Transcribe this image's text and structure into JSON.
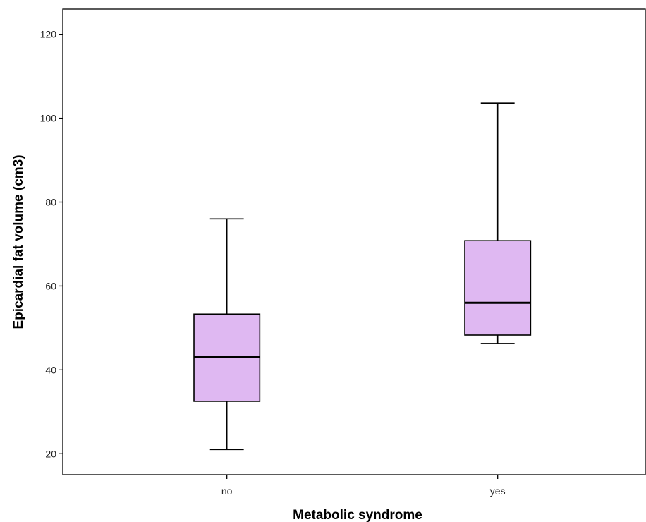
{
  "chart_data": {
    "type": "boxplot",
    "title": "",
    "xlabel": "Metabolic syndrome",
    "ylabel": "Epicardial fat volume (cm3)",
    "ylim": [
      15,
      126
    ],
    "yticks": [
      20,
      40,
      60,
      80,
      100,
      120
    ],
    "categories": [
      "no",
      "yes"
    ],
    "boxes": [
      {
        "category": "no",
        "min": 21.0,
        "q1": 32.5,
        "median": 43.0,
        "q3": 53.3,
        "max": 76.0
      },
      {
        "category": "yes",
        "min": 46.3,
        "q1": 48.3,
        "median": 56.0,
        "q3": 70.8,
        "max": 103.6
      }
    ],
    "grid": false,
    "legend": "none",
    "colors": {
      "box_fill": "#dfb8f2",
      "line": "#000000"
    }
  }
}
